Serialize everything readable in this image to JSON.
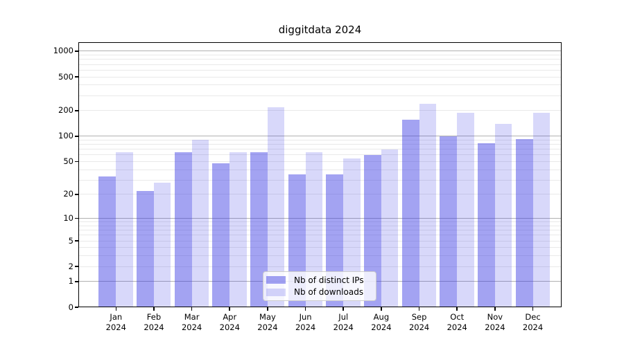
{
  "title": "diggitdata 2024",
  "legend": {
    "items": [
      {
        "label": "Nb of distinct IPs",
        "series": "ips"
      },
      {
        "label": "Nb of downloads",
        "series": "downloads"
      }
    ]
  },
  "axes": {
    "y_tick_labels": [
      "1000",
      "500",
      "200",
      "100",
      "50",
      "20",
      "10",
      "5",
      "2",
      "1",
      "0"
    ],
    "y_tick_values": [
      1000,
      500,
      200,
      100,
      50,
      20,
      10,
      5,
      2,
      1,
      0
    ],
    "y_major_grid_values": [
      1,
      10,
      100,
      1000
    ],
    "y_minor_grid_values": [
      2,
      3,
      4,
      5,
      6,
      7,
      8,
      9,
      20,
      30,
      40,
      50,
      60,
      70,
      80,
      90,
      200,
      300,
      400,
      500,
      600,
      700,
      800,
      900
    ],
    "x_tick_line1": [
      "Jan",
      "Feb",
      "Mar",
      "Apr",
      "May",
      "Jun",
      "Jul",
      "Aug",
      "Sep",
      "Oct",
      "Nov",
      "Dec"
    ],
    "x_tick_line2": "2024"
  },
  "colors": {
    "ips_bar": "rgba(60,60,228,0.47)",
    "downloads_bar": "rgba(60,60,228,0.20)",
    "grid_major": "#b0b0b0",
    "grid_minor": "#e9e9e9",
    "spine": "#000000",
    "text": "#000000",
    "legend_bg": "rgba(255,255,255,0.8)",
    "legend_border": "#cccccc"
  },
  "chart_data": {
    "type": "bar",
    "title": "diggitdata 2024",
    "categories": [
      "Jan 2024",
      "Feb 2024",
      "Mar 2024",
      "Apr 2024",
      "May 2024",
      "Jun 2024",
      "Jul 2024",
      "Aug 2024",
      "Sep 2024",
      "Oct 2024",
      "Nov 2024",
      "Dec 2024"
    ],
    "series": [
      {
        "name": "Nb of distinct IPs",
        "values": [
          33,
          22,
          65,
          48,
          65,
          35,
          35,
          60,
          156,
          100,
          82,
          93
        ]
      },
      {
        "name": "Nb of downloads",
        "values": [
          65,
          28,
          90,
          64,
          220,
          64,
          54,
          70,
          242,
          188,
          140,
          190
        ]
      }
    ],
    "yscale": "log1p",
    "yticks": [
      0,
      1,
      2,
      5,
      10,
      20,
      50,
      100,
      200,
      500,
      1000
    ],
    "ylim": [
      0,
      1280
    ],
    "xlabel": "",
    "ylabel": "",
    "grid": true,
    "legend_position": "lower center"
  }
}
